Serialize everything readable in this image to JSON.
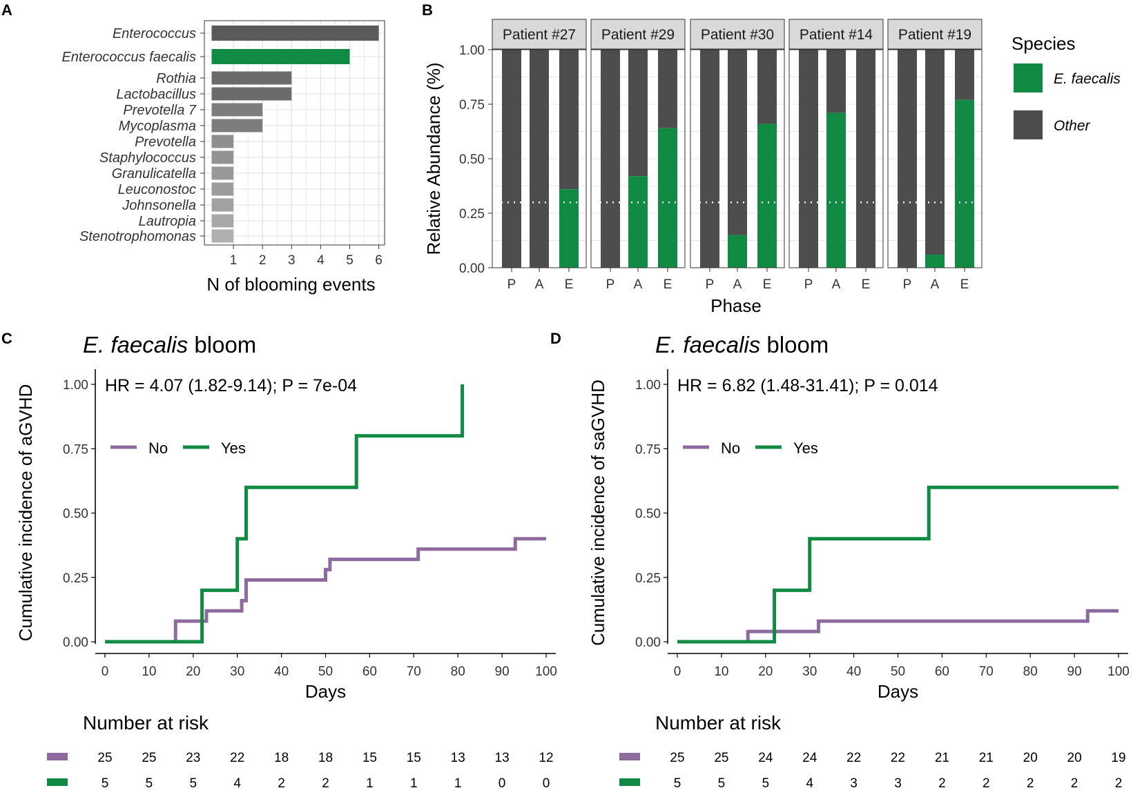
{
  "panels": {
    "A": {
      "letter": "A"
    },
    "B": {
      "letter": "B"
    },
    "C": {
      "letter": "C"
    },
    "D": {
      "letter": "D"
    }
  },
  "colors": {
    "green": "#118a44",
    "purple": "#8e6b9e",
    "dark": "#4d4d4d",
    "grid": "#e5e5e5",
    "strip_fill": "#d9d9d9",
    "dotted": "#ffffff"
  },
  "chart_data": [
    {
      "id": "A",
      "type": "bar",
      "orientation": "horizontal",
      "categories": [
        "Enterococcus",
        "Enterococcus faecalis",
        "Rothia",
        "Lactobacillus",
        "Prevotella 7",
        "Mycoplasma",
        "Prevotella",
        "Staphylococcus",
        "Granulicatella",
        "Leuconostoc",
        "Johnsonella",
        "Lautropia",
        "Stenotrophomonas"
      ],
      "values": [
        6,
        5,
        3,
        3,
        2,
        2,
        1,
        1,
        1,
        1,
        1,
        1,
        1
      ],
      "bar_colors": [
        "#5a5a5a",
        "#118a44",
        "#6b6b6b",
        "#6b6b6b",
        "#7d7d7d",
        "#7d7d7d",
        "#8f8f8f",
        "#939393",
        "#989898",
        "#9c9c9c",
        "#a1a1a1",
        "#a8a8a8",
        "#b0b0b0"
      ],
      "xlabel": "N of blooming events",
      "xticks": [
        "1",
        "2",
        "3",
        "4",
        "5",
        "6"
      ],
      "xlim": [
        0,
        6.2
      ]
    },
    {
      "id": "B",
      "type": "bar",
      "stacked": true,
      "facets": [
        {
          "label": "Patient #27",
          "phases": [
            "P",
            "A",
            "E"
          ],
          "e_faecalis": [
            0.0,
            0.0,
            0.36
          ]
        },
        {
          "label": "Patient #29",
          "phases": [
            "P",
            "A",
            "E"
          ],
          "e_faecalis": [
            0.0,
            0.42,
            0.64
          ]
        },
        {
          "label": "Patient #30",
          "phases": [
            "P",
            "A",
            "E"
          ],
          "e_faecalis": [
            0.0,
            0.15,
            0.66
          ]
        },
        {
          "label": "Patient #14",
          "phases": [
            "P",
            "A",
            "E"
          ],
          "e_faecalis": [
            0.0,
            0.71,
            0.0
          ]
        },
        {
          "label": "Patient #19",
          "phases": [
            "P",
            "A",
            "E"
          ],
          "e_faecalis": [
            0.0,
            0.06,
            0.77
          ]
        }
      ],
      "threshold": 0.3,
      "ylabel": "Relative Abundance (%)",
      "xlabel": "Phase",
      "yticks": [
        "0.00",
        "0.25",
        "0.50",
        "0.75",
        "1.00"
      ],
      "ylim": [
        0,
        1
      ],
      "legend": {
        "title": "Species",
        "items": [
          {
            "label": "E. faecalis",
            "color": "#118a44"
          },
          {
            "label": "Other",
            "color": "#4d4d4d"
          }
        ]
      }
    },
    {
      "id": "C",
      "type": "line",
      "step": true,
      "title_italic": "E. faecalis",
      "title_rest": " bloom",
      "annotation": "HR = 4.07 (1.82-9.14); P = 7e-04",
      "ylabel": "Cumulative incidence of aGVHD",
      "xlabel": "Days",
      "xticks": [
        "0",
        "10",
        "20",
        "30",
        "40",
        "50",
        "60",
        "70",
        "80",
        "90",
        "100"
      ],
      "yticks": [
        "0.00",
        "0.25",
        "0.50",
        "0.75",
        "1.00"
      ],
      "xlim": [
        0,
        100
      ],
      "ylim": [
        0,
        1
      ],
      "legend": [
        {
          "label": "No",
          "color": "#8e6b9e"
        },
        {
          "label": "Yes",
          "color": "#118a44"
        }
      ],
      "series": [
        {
          "name": "No",
          "color": "#8e6b9e",
          "x": [
            0,
            16,
            23,
            31,
            32,
            50,
            51,
            71,
            93,
            100
          ],
          "y": [
            0,
            0.08,
            0.12,
            0.16,
            0.24,
            0.28,
            0.32,
            0.36,
            0.4,
            0.4
          ]
        },
        {
          "name": "Yes",
          "color": "#118a44",
          "x": [
            0,
            22,
            30,
            32,
            57,
            81
          ],
          "y": [
            0,
            0.2,
            0.4,
            0.6,
            0.8,
            1.0
          ]
        }
      ],
      "risk_table": {
        "title": "Number at risk",
        "rows": [
          {
            "name": "No",
            "color": "#8e6b9e",
            "values": [
              "25",
              "25",
              "23",
              "22",
              "18",
              "18",
              "15",
              "15",
              "13",
              "13",
              "12"
            ]
          },
          {
            "name": "Yes",
            "color": "#118a44",
            "values": [
              "5",
              "5",
              "5",
              "4",
              "2",
              "2",
              "1",
              "1",
              "1",
              "0",
              "0"
            ]
          }
        ]
      }
    },
    {
      "id": "D",
      "type": "line",
      "step": true,
      "title_italic": "E. faecalis",
      "title_rest": " bloom",
      "annotation": "HR = 6.82 (1.48-31.41); P = 0.014",
      "ylabel": "Cumulative incidence of saGVHD",
      "xlabel": "Days",
      "xticks": [
        "0",
        "10",
        "20",
        "30",
        "40",
        "50",
        "60",
        "70",
        "80",
        "90",
        "100"
      ],
      "yticks": [
        "0.00",
        "0.25",
        "0.50",
        "0.75",
        "1.00"
      ],
      "xlim": [
        0,
        100
      ],
      "ylim": [
        0,
        1
      ],
      "legend": [
        {
          "label": "No",
          "color": "#8e6b9e"
        },
        {
          "label": "Yes",
          "color": "#118a44"
        }
      ],
      "series": [
        {
          "name": "No",
          "color": "#8e6b9e",
          "x": [
            0,
            16,
            32,
            93,
            100
          ],
          "y": [
            0,
            0.04,
            0.08,
            0.12,
            0.12
          ]
        },
        {
          "name": "Yes",
          "color": "#118a44",
          "x": [
            0,
            22,
            30,
            57,
            100
          ],
          "y": [
            0,
            0.2,
            0.4,
            0.6,
            0.6
          ]
        }
      ],
      "risk_table": {
        "title": "Number at risk",
        "rows": [
          {
            "name": "No",
            "color": "#8e6b9e",
            "values": [
              "25",
              "25",
              "24",
              "24",
              "22",
              "22",
              "21",
              "21",
              "20",
              "20",
              "19"
            ]
          },
          {
            "name": "Yes",
            "color": "#118a44",
            "values": [
              "5",
              "5",
              "5",
              "4",
              "3",
              "3",
              "2",
              "2",
              "2",
              "2",
              "2"
            ]
          }
        ]
      }
    }
  ]
}
